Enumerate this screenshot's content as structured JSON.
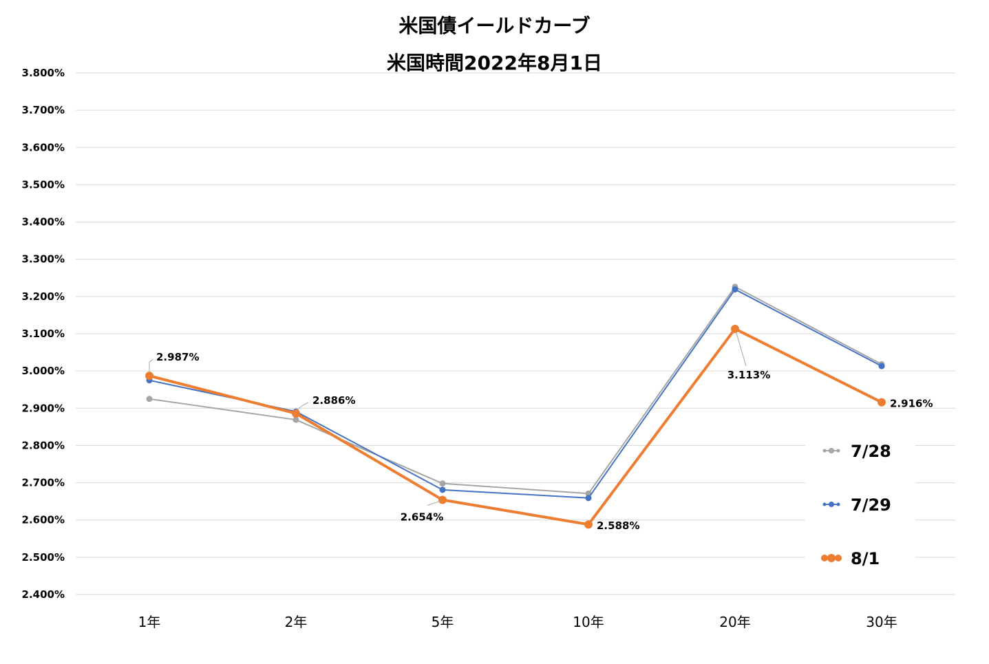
{
  "chart_data": {
    "type": "line",
    "title": "米国債イールドカーブ",
    "subtitle": "米国時間2022年8月1日",
    "categories": [
      "1年",
      "2年",
      "5年",
      "10年",
      "20年",
      "30年"
    ],
    "ylim": [
      2.4,
      3.8
    ],
    "y_ticks": [
      {
        "value": 3.8,
        "label": "3.800%"
      },
      {
        "value": 3.7,
        "label": "3.700%"
      },
      {
        "value": 3.6,
        "label": "3.600%"
      },
      {
        "value": 3.5,
        "label": "3.500%"
      },
      {
        "value": 3.4,
        "label": "3.400%"
      },
      {
        "value": 3.3,
        "label": "3.300%"
      },
      {
        "value": 3.2,
        "label": "3.200%"
      },
      {
        "value": 3.1,
        "label": "3.100%"
      },
      {
        "value": 3.0,
        "label": "3.000%"
      },
      {
        "value": 2.9,
        "label": "2.900%"
      },
      {
        "value": 2.8,
        "label": "2.800%"
      },
      {
        "value": 2.7,
        "label": "2.700%"
      },
      {
        "value": 2.6,
        "label": "2.600%"
      },
      {
        "value": 2.5,
        "label": "2.500%"
      },
      {
        "value": 2.4,
        "label": "2.400%"
      }
    ],
    "grid": true,
    "legend_position": "right",
    "series": [
      {
        "name": "7/28",
        "color": "#A5A5A5",
        "values": [
          2.925,
          2.869,
          2.698,
          2.671,
          3.226,
          3.018
        ]
      },
      {
        "name": "7/29",
        "color": "#4472C4",
        "values": [
          2.975,
          2.891,
          2.681,
          2.659,
          3.219,
          3.013
        ]
      },
      {
        "name": "8/1",
        "color": "#ED7D31",
        "values": [
          2.987,
          2.886,
          2.654,
          2.588,
          3.113,
          2.916
        ]
      }
    ],
    "data_labels": [
      {
        "series": "8/1",
        "index": 0,
        "text": "2.987%"
      },
      {
        "series": "8/1",
        "index": 1,
        "text": "2.886%"
      },
      {
        "series": "8/1",
        "index": 2,
        "text": "2.654%"
      },
      {
        "series": "8/1",
        "index": 3,
        "text": "2.588%"
      },
      {
        "series": "8/1",
        "index": 4,
        "text": "3.113%"
      },
      {
        "series": "8/1",
        "index": 5,
        "text": "2.916%"
      }
    ]
  }
}
